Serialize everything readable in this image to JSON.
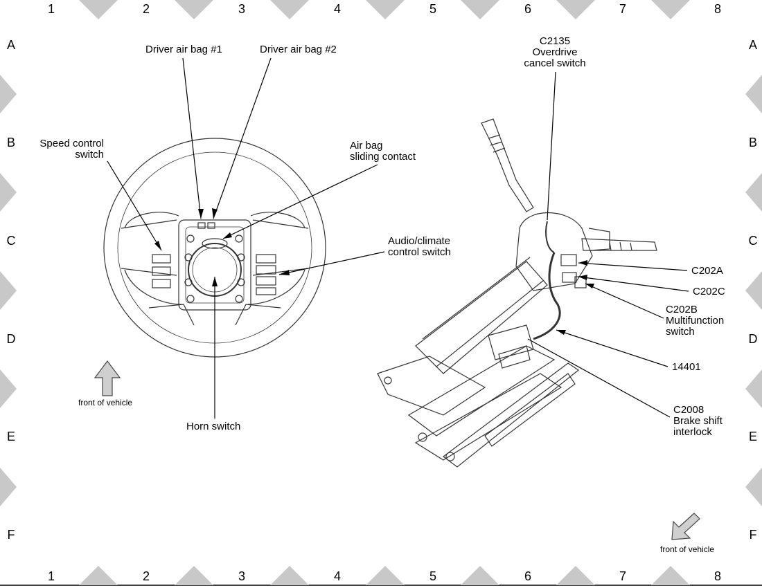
{
  "grid": {
    "columns": [
      "1",
      "2",
      "3",
      "4",
      "5",
      "6",
      "7",
      "8"
    ],
    "rows": [
      "A",
      "B",
      "C",
      "D",
      "E",
      "F"
    ]
  },
  "callouts": {
    "driver_airbag_1": "Driver air bag #1",
    "driver_airbag_2": "Driver air bag #2",
    "speed_control_switch": "Speed control\nswitch",
    "airbag_sliding_contact": "Air bag\nsliding contact",
    "audio_climate_switch": "Audio/climate\ncontrol switch",
    "horn_switch": "Horn switch",
    "c2135": "C2135\nOverdrive\ncancel switch",
    "c202a": "C202A",
    "c202c": "C202C",
    "c202b": "C202B\nMultifunction\nswitch",
    "wire_14401": "14401",
    "c2008": "C2008\nBrake shift\ninterlock"
  },
  "front_of_vehicle_left": "front of vehicle",
  "front_of_vehicle_right": "front of vehicle",
  "colors": {
    "line": "#000000",
    "marker": "#c8c8c8",
    "arrow_fill": "#cfcfcf"
  }
}
